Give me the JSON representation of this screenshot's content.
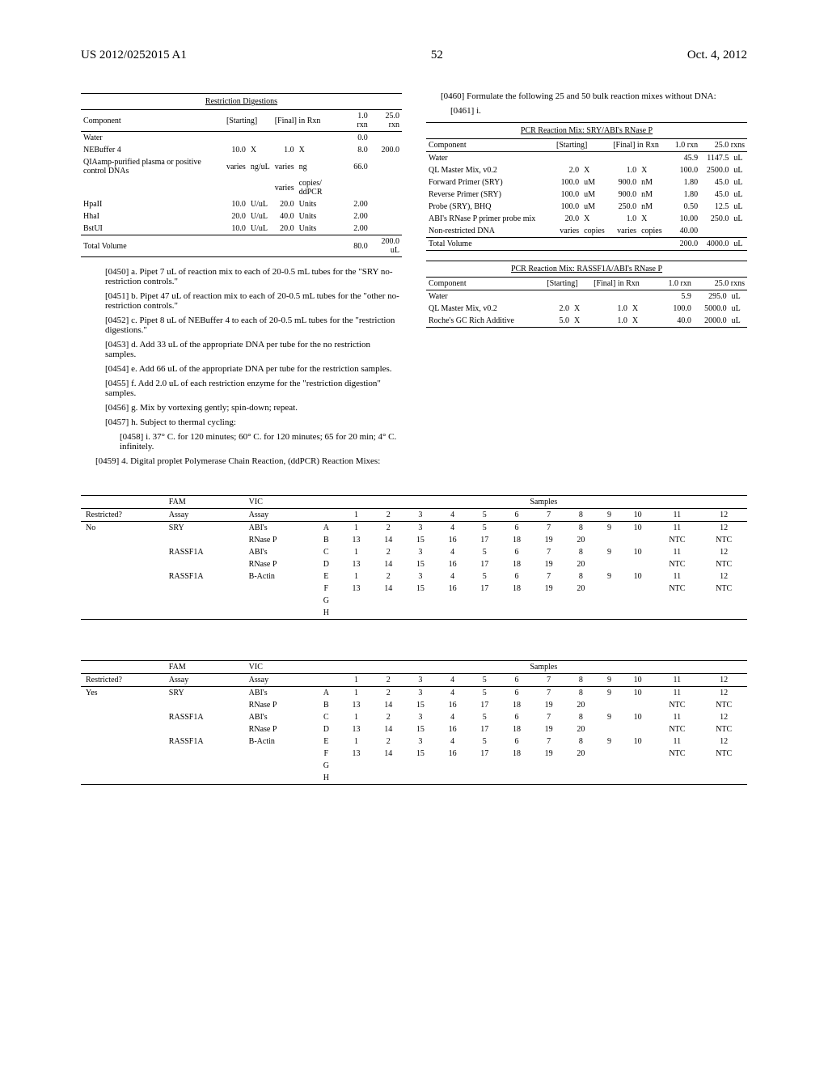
{
  "header": {
    "patent_id": "US 2012/0252015 A1",
    "page_num": "52",
    "date": "Oct. 4, 2012"
  },
  "table1": {
    "title": "Restriction Digestions",
    "cols": {
      "c1": "Component",
      "c2": "[Starting]",
      "c3": "[Final] in Rxn",
      "c4": "1.0 rxn",
      "c5": "25.0 rxn"
    },
    "rows": [
      {
        "comp": "Water",
        "s1": "",
        "s2": "",
        "f1": "",
        "f2": "",
        "v1": "0.0",
        "v2": ""
      },
      {
        "comp": "NEBuffer 4",
        "s1": "10.0",
        "s2": "X",
        "f1": "1.0",
        "f2": "X",
        "v1": "8.0",
        "v2": "200.0"
      },
      {
        "comp": "QIAamp-purified plasma or positive control DNAs",
        "s1": "varies",
        "s2": "ng/uL",
        "f1": "varies",
        "f2": "ng",
        "v1": "66.0",
        "v2": ""
      },
      {
        "comp": "",
        "s1": "",
        "s2": "",
        "f1": "varies",
        "f2": "copies/ ddPCR",
        "v1": "",
        "v2": ""
      },
      {
        "comp": "HpaII",
        "s1": "10.0",
        "s2": "U/uL",
        "f1": "20.0",
        "f2": "Units",
        "v1": "2.00",
        "v2": ""
      },
      {
        "comp": "HhaI",
        "s1": "20.0",
        "s2": "U/uL",
        "f1": "40.0",
        "f2": "Units",
        "v1": "2.00",
        "v2": ""
      },
      {
        "comp": "BstUI",
        "s1": "10.0",
        "s2": "U/uL",
        "f1": "20.0",
        "f2": "Units",
        "v1": "2.00",
        "v2": ""
      }
    ],
    "total": {
      "comp": "Total Volume",
      "v1": "80.0",
      "v2": "200.0",
      "u": "uL"
    }
  },
  "paras": {
    "p0450": "[0450]   a. Pipet 7 uL of reaction mix to each of 20-0.5 mL tubes for the \"SRY no-restriction controls.\"",
    "p0451": "[0451]   b. Pipet 47 uL of reaction mix to each of 20-0.5 mL tubes for the \"other no-restriction controls.\"",
    "p0452": "[0452]   c. Pipet 8 uL of NEBuffer 4 to each of 20-0.5 mL tubes for the \"restriction digestions.\"",
    "p0453": "[0453]   d. Add 33 uL of the appropriate DNA per tube for the no restriction samples.",
    "p0454": "[0454]   e. Add 66 uL of the appropriate DNA per tube for the restriction samples.",
    "p0455": "[0455]   f. Add 2.0 uL of each restriction enzyme for the \"restriction digestion\" samples.",
    "p0456": "[0456]   g. Mix by vortexing gently; spin-down; repeat.",
    "p0457": "[0457]   h. Subject to thermal cycling:",
    "p0458": "[0458]   i. 37° C. for 120 minutes; 60° C. for 120 minutes; 65 for 20 min; 4° C. infinitely.",
    "p0459": "[0459]   4. Digital proplet Polymerase Chain Reaction, (ddPCR) Reaction Mixes:",
    "p0460": "[0460]   Formulate the following 25 and 50 bulk reaction mixes without DNA:",
    "p0461": "[0461]   i."
  },
  "table2": {
    "title": "PCR Reaction Mix: SRY/ABI's RNase P",
    "cols": {
      "c1": "Component",
      "c2": "[Starting]",
      "c3": "[Final] in Rxn",
      "c4": "1.0 rxn",
      "c5": "25.0 rxns"
    },
    "rows": [
      {
        "comp": "Water",
        "s1": "",
        "s2": "",
        "f1": "",
        "f2": "",
        "v1": "45.9",
        "v2": "1147.5",
        "u": "uL"
      },
      {
        "comp": "QL Master Mix, v0.2",
        "s1": "2.0",
        "s2": "X",
        "f1": "1.0",
        "f2": "X",
        "v1": "100.0",
        "v2": "2500.0",
        "u": "uL"
      },
      {
        "comp": "Forward Primer (SRY)",
        "s1": "100.0",
        "s2": "uM",
        "f1": "900.0",
        "f2": "nM",
        "v1": "1.80",
        "v2": "45.0",
        "u": "uL"
      },
      {
        "comp": "Reverse Primer (SRY)",
        "s1": "100.0",
        "s2": "uM",
        "f1": "900.0",
        "f2": "nM",
        "v1": "1.80",
        "v2": "45.0",
        "u": "uL"
      },
      {
        "comp": "Probe (SRY), BHQ",
        "s1": "100.0",
        "s2": "uM",
        "f1": "250.0",
        "f2": "nM",
        "v1": "0.50",
        "v2": "12.5",
        "u": "uL"
      },
      {
        "comp": "ABI's RNase P primer probe mix",
        "s1": "20.0",
        "s2": "X",
        "f1": "1.0",
        "f2": "X",
        "v1": "10.00",
        "v2": "250.0",
        "u": "uL"
      },
      {
        "comp": "Non-restricted DNA",
        "s1": "varies",
        "s2": "copies",
        "f1": "varies",
        "f2": "copies",
        "v1": "40.00",
        "v2": "",
        "u": ""
      }
    ],
    "total": {
      "comp": "Total Volume",
      "v1": "200.0",
      "v2": "4000.0",
      "u": "uL"
    }
  },
  "table3": {
    "title": "PCR Reaction Mix: RASSF1A/ABI's RNase P",
    "cols": {
      "c1": "Component",
      "c2": "[Starting]",
      "c3": "[Final] in Rxn",
      "c4": "1.0 rxn",
      "c5": "25.0 rxns"
    },
    "rows": [
      {
        "comp": "Water",
        "s1": "",
        "s2": "",
        "f1": "",
        "f2": "",
        "v1": "5.9",
        "v2": "295.0",
        "u": "uL"
      },
      {
        "comp": "QL Master Mix, v0.2",
        "s1": "2.0",
        "s2": "X",
        "f1": "1.0",
        "f2": "X",
        "v1": "100.0",
        "v2": "5000.0",
        "u": "uL"
      },
      {
        "comp": "Roche's GC Rich Additive",
        "s1": "5.0",
        "s2": "X",
        "f1": "1.0",
        "f2": "X",
        "v1": "40.0",
        "v2": "2000.0",
        "u": "uL"
      }
    ]
  },
  "plate": {
    "header": {
      "restricted": "Restricted?",
      "fam": "FAM",
      "vic": "VIC",
      "assay": "Assay",
      "samples": "Samples"
    },
    "sampleNums": [
      "1",
      "2",
      "3",
      "4",
      "5",
      "6",
      "7",
      "8",
      "9",
      "10",
      "11",
      "12"
    ],
    "groups": [
      {
        "restricted": "No",
        "rows": [
          {
            "fam": "SRY",
            "vic": "ABI's",
            "lbl": "A",
            "cells": [
              "1",
              "2",
              "3",
              "4",
              "5",
              "6",
              "7",
              "8",
              "9",
              "10",
              "11",
              "12"
            ]
          },
          {
            "fam": "",
            "vic": "RNase P",
            "lbl": "B",
            "cells": [
              "13",
              "14",
              "15",
              "16",
              "17",
              "18",
              "19",
              "20",
              "",
              "",
              "NTC",
              "NTC"
            ]
          },
          {
            "fam": "RASSF1A",
            "vic": "ABI's",
            "lbl": "C",
            "cells": [
              "1",
              "2",
              "3",
              "4",
              "5",
              "6",
              "7",
              "8",
              "9",
              "10",
              "11",
              "12"
            ]
          },
          {
            "fam": "",
            "vic": "RNase P",
            "lbl": "D",
            "cells": [
              "13",
              "14",
              "15",
              "16",
              "17",
              "18",
              "19",
              "20",
              "",
              "",
              "NTC",
              "NTC"
            ]
          },
          {
            "fam": "RASSF1A",
            "vic": "B-Actin",
            "lbl": "E",
            "cells": [
              "1",
              "2",
              "3",
              "4",
              "5",
              "6",
              "7",
              "8",
              "9",
              "10",
              "11",
              "12"
            ]
          },
          {
            "fam": "",
            "vic": "",
            "lbl": "F",
            "cells": [
              "13",
              "14",
              "15",
              "16",
              "17",
              "18",
              "19",
              "20",
              "",
              "",
              "NTC",
              "NTC"
            ]
          },
          {
            "fam": "",
            "vic": "",
            "lbl": "G",
            "cells": [
              "",
              "",
              "",
              "",
              "",
              "",
              "",
              "",
              "",
              "",
              "",
              ""
            ]
          },
          {
            "fam": "",
            "vic": "",
            "lbl": "H",
            "cells": [
              "",
              "",
              "",
              "",
              "",
              "",
              "",
              "",
              "",
              "",
              "",
              ""
            ]
          }
        ]
      },
      {
        "restricted": "Yes",
        "rows": [
          {
            "fam": "SRY",
            "vic": "ABI's",
            "lbl": "A",
            "cells": [
              "1",
              "2",
              "3",
              "4",
              "5",
              "6",
              "7",
              "8",
              "9",
              "10",
              "11",
              "12"
            ]
          },
          {
            "fam": "",
            "vic": "RNase P",
            "lbl": "B",
            "cells": [
              "13",
              "14",
              "15",
              "16",
              "17",
              "18",
              "19",
              "20",
              "",
              "",
              "NTC",
              "NTC"
            ]
          },
          {
            "fam": "RASSF1A",
            "vic": "ABI's",
            "lbl": "C",
            "cells": [
              "1",
              "2",
              "3",
              "4",
              "5",
              "6",
              "7",
              "8",
              "9",
              "10",
              "11",
              "12"
            ]
          },
          {
            "fam": "",
            "vic": "RNase P",
            "lbl": "D",
            "cells": [
              "13",
              "14",
              "15",
              "16",
              "17",
              "18",
              "19",
              "20",
              "",
              "",
              "NTC",
              "NTC"
            ]
          },
          {
            "fam": "RASSF1A",
            "vic": "B-Actin",
            "lbl": "E",
            "cells": [
              "1",
              "2",
              "3",
              "4",
              "5",
              "6",
              "7",
              "8",
              "9",
              "10",
              "11",
              "12"
            ]
          },
          {
            "fam": "",
            "vic": "",
            "lbl": "F",
            "cells": [
              "13",
              "14",
              "15",
              "16",
              "17",
              "18",
              "19",
              "20",
              "",
              "",
              "NTC",
              "NTC"
            ]
          },
          {
            "fam": "",
            "vic": "",
            "lbl": "G",
            "cells": [
              "",
              "",
              "",
              "",
              "",
              "",
              "",
              "",
              "",
              "",
              "",
              ""
            ]
          },
          {
            "fam": "",
            "vic": "",
            "lbl": "H",
            "cells": [
              "",
              "",
              "",
              "",
              "",
              "",
              "",
              "",
              "",
              "",
              "",
              ""
            ]
          }
        ]
      }
    ]
  }
}
